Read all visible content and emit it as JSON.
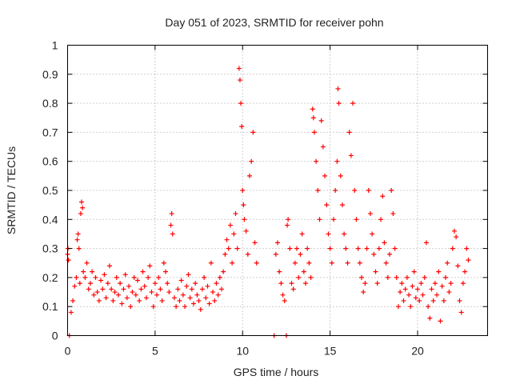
{
  "chart_data": {
    "type": "scatter",
    "title": "Day 051 of 2023, SRMTID for receiver pohn",
    "xlabel": "GPS time / hours",
    "ylabel": "SRMTID / TECUs",
    "xlim": [
      0,
      24
    ],
    "ylim": [
      0,
      1
    ],
    "xticks": [
      0,
      5,
      10,
      15,
      20
    ],
    "xtick_labels": [
      "0",
      "5",
      "10",
      "15",
      "20"
    ],
    "yticks": [
      0,
      0.1,
      0.2,
      0.3,
      0.4,
      0.5,
      0.6,
      0.7,
      0.8,
      0.9,
      1
    ],
    "ytick_labels": [
      "0",
      "0.1",
      "0.2",
      "0.3",
      "0.4",
      "0.5",
      "0.6",
      "0.7",
      "0.8",
      "0.9",
      "1"
    ],
    "grid": true,
    "marker": "plus",
    "color": "#ff0000",
    "series": [
      {
        "name": "SRMTID",
        "points": [
          [
            0.0,
            0.28
          ],
          [
            0.02,
            0.3
          ],
          [
            0.05,
            0.26
          ],
          [
            0.1,
            0.0
          ],
          [
            0.2,
            0.08
          ],
          [
            0.3,
            0.12
          ],
          [
            0.4,
            0.17
          ],
          [
            0.5,
            0.2
          ],
          [
            0.55,
            0.33
          ],
          [
            0.6,
            0.35
          ],
          [
            0.65,
            0.3
          ],
          [
            0.7,
            0.18
          ],
          [
            0.75,
            0.42
          ],
          [
            0.8,
            0.46
          ],
          [
            0.85,
            0.44
          ],
          [
            0.9,
            0.22
          ],
          [
            1.0,
            0.2
          ],
          [
            1.1,
            0.25
          ],
          [
            1.2,
            0.16
          ],
          [
            1.3,
            0.18
          ],
          [
            1.4,
            0.22
          ],
          [
            1.5,
            0.14
          ],
          [
            1.6,
            0.2
          ],
          [
            1.7,
            0.15
          ],
          [
            1.8,
            0.12
          ],
          [
            1.9,
            0.19
          ],
          [
            2.0,
            0.16
          ],
          [
            2.1,
            0.21
          ],
          [
            2.2,
            0.13
          ],
          [
            2.3,
            0.18
          ],
          [
            2.4,
            0.24
          ],
          [
            2.5,
            0.16
          ],
          [
            2.6,
            0.12
          ],
          [
            2.7,
            0.15
          ],
          [
            2.8,
            0.2
          ],
          [
            2.9,
            0.14
          ],
          [
            3.0,
            0.18
          ],
          [
            3.1,
            0.11
          ],
          [
            3.2,
            0.16
          ],
          [
            3.3,
            0.21
          ],
          [
            3.4,
            0.13
          ],
          [
            3.5,
            0.17
          ],
          [
            3.6,
            0.1
          ],
          [
            3.7,
            0.15
          ],
          [
            3.8,
            0.2
          ],
          [
            3.9,
            0.14
          ],
          [
            4.0,
            0.19
          ],
          [
            4.1,
            0.12
          ],
          [
            4.2,
            0.16
          ],
          [
            4.3,
            0.22
          ],
          [
            4.4,
            0.17
          ],
          [
            4.5,
            0.13
          ],
          [
            4.6,
            0.2
          ],
          [
            4.7,
            0.24
          ],
          [
            4.8,
            0.15
          ],
          [
            4.9,
            0.1
          ],
          [
            5.0,
            0.18
          ],
          [
            5.1,
            0.14
          ],
          [
            5.2,
            0.2
          ],
          [
            5.3,
            0.16
          ],
          [
            5.4,
            0.12
          ],
          [
            5.5,
            0.25
          ],
          [
            5.6,
            0.22
          ],
          [
            5.7,
            0.18
          ],
          [
            5.8,
            0.15
          ],
          [
            5.9,
            0.38
          ],
          [
            5.95,
            0.42
          ],
          [
            6.0,
            0.35
          ],
          [
            6.1,
            0.13
          ],
          [
            6.2,
            0.1
          ],
          [
            6.3,
            0.16
          ],
          [
            6.4,
            0.12
          ],
          [
            6.5,
            0.19
          ],
          [
            6.6,
            0.14
          ],
          [
            6.7,
            0.1
          ],
          [
            6.8,
            0.17
          ],
          [
            6.9,
            0.21
          ],
          [
            7.0,
            0.13
          ],
          [
            7.1,
            0.16
          ],
          [
            7.2,
            0.11
          ],
          [
            7.3,
            0.18
          ],
          [
            7.4,
            0.14
          ],
          [
            7.5,
            0.12
          ],
          [
            7.6,
            0.09
          ],
          [
            7.7,
            0.16
          ],
          [
            7.8,
            0.2
          ],
          [
            7.9,
            0.13
          ],
          [
            8.0,
            0.17
          ],
          [
            8.1,
            0.11
          ],
          [
            8.2,
            0.25
          ],
          [
            8.3,
            0.15
          ],
          [
            8.4,
            0.12
          ],
          [
            8.5,
            0.18
          ],
          [
            8.6,
            0.14
          ],
          [
            8.7,
            0.2
          ],
          [
            8.8,
            0.16
          ],
          [
            8.9,
            0.22
          ],
          [
            9.0,
            0.28
          ],
          [
            9.1,
            0.33
          ],
          [
            9.2,
            0.3
          ],
          [
            9.3,
            0.38
          ],
          [
            9.4,
            0.25
          ],
          [
            9.5,
            0.35
          ],
          [
            9.6,
            0.42
          ],
          [
            9.7,
            0.3
          ],
          [
            9.8,
            0.92
          ],
          [
            9.85,
            0.88
          ],
          [
            9.9,
            0.8
          ],
          [
            9.95,
            0.72
          ],
          [
            10.0,
            0.5
          ],
          [
            10.05,
            0.45
          ],
          [
            10.1,
            0.4
          ],
          [
            10.2,
            0.36
          ],
          [
            10.3,
            0.28
          ],
          [
            10.4,
            0.55
          ],
          [
            10.5,
            0.6
          ],
          [
            10.6,
            0.7
          ],
          [
            10.7,
            0.32
          ],
          [
            10.8,
            0.25
          ],
          [
            11.8,
            0.0
          ],
          [
            11.9,
            0.28
          ],
          [
            12.0,
            0.32
          ],
          [
            12.1,
            0.22
          ],
          [
            12.2,
            0.18
          ],
          [
            12.3,
            0.14
          ],
          [
            12.4,
            0.12
          ],
          [
            12.5,
            0.0
          ],
          [
            12.55,
            0.38
          ],
          [
            12.6,
            0.4
          ],
          [
            12.7,
            0.3
          ],
          [
            12.8,
            0.18
          ],
          [
            12.9,
            0.16
          ],
          [
            13.0,
            0.25
          ],
          [
            13.1,
            0.3
          ],
          [
            13.2,
            0.2
          ],
          [
            13.3,
            0.28
          ],
          [
            13.4,
            0.35
          ],
          [
            13.5,
            0.22
          ],
          [
            13.6,
            0.18
          ],
          [
            13.7,
            0.3
          ],
          [
            13.8,
            0.25
          ],
          [
            13.9,
            0.2
          ],
          [
            14.0,
            0.78
          ],
          [
            14.05,
            0.75
          ],
          [
            14.1,
            0.7
          ],
          [
            14.2,
            0.6
          ],
          [
            14.3,
            0.5
          ],
          [
            14.4,
            0.4
          ],
          [
            14.5,
            0.74
          ],
          [
            14.6,
            0.65
          ],
          [
            14.7,
            0.55
          ],
          [
            14.8,
            0.45
          ],
          [
            14.9,
            0.35
          ],
          [
            15.0,
            0.3
          ],
          [
            15.1,
            0.25
          ],
          [
            15.2,
            0.4
          ],
          [
            15.3,
            0.5
          ],
          [
            15.4,
            0.6
          ],
          [
            15.45,
            0.85
          ],
          [
            15.5,
            0.8
          ],
          [
            15.6,
            0.55
          ],
          [
            15.7,
            0.45
          ],
          [
            15.8,
            0.35
          ],
          [
            15.9,
            0.3
          ],
          [
            16.0,
            0.25
          ],
          [
            16.1,
            0.7
          ],
          [
            16.2,
            0.62
          ],
          [
            16.3,
            0.8
          ],
          [
            16.4,
            0.5
          ],
          [
            16.5,
            0.4
          ],
          [
            16.6,
            0.3
          ],
          [
            16.7,
            0.25
          ],
          [
            16.8,
            0.2
          ],
          [
            16.9,
            0.15
          ],
          [
            17.0,
            0.18
          ],
          [
            17.1,
            0.3
          ],
          [
            17.2,
            0.5
          ],
          [
            17.3,
            0.42
          ],
          [
            17.4,
            0.35
          ],
          [
            17.5,
            0.28
          ],
          [
            17.6,
            0.22
          ],
          [
            17.7,
            0.18
          ],
          [
            17.8,
            0.3
          ],
          [
            17.9,
            0.4
          ],
          [
            18.0,
            0.48
          ],
          [
            18.1,
            0.32
          ],
          [
            18.2,
            0.25
          ],
          [
            18.3,
            0.2
          ],
          [
            18.4,
            0.28
          ],
          [
            18.5,
            0.5
          ],
          [
            18.6,
            0.42
          ],
          [
            18.7,
            0.3
          ],
          [
            18.8,
            0.2
          ],
          [
            18.9,
            0.1
          ],
          [
            19.0,
            0.15
          ],
          [
            19.1,
            0.18
          ],
          [
            19.2,
            0.12
          ],
          [
            19.3,
            0.16
          ],
          [
            19.4,
            0.2
          ],
          [
            19.5,
            0.14
          ],
          [
            19.6,
            0.1
          ],
          [
            19.7,
            0.17
          ],
          [
            19.8,
            0.22
          ],
          [
            19.9,
            0.13
          ],
          [
            20.0,
            0.16
          ],
          [
            20.1,
            0.12
          ],
          [
            20.2,
            0.18
          ],
          [
            20.3,
            0.14
          ],
          [
            20.4,
            0.2
          ],
          [
            20.5,
            0.32
          ],
          [
            20.6,
            0.1
          ],
          [
            20.7,
            0.06
          ],
          [
            20.8,
            0.16
          ],
          [
            20.9,
            0.12
          ],
          [
            21.0,
            0.18
          ],
          [
            21.1,
            0.14
          ],
          [
            21.2,
            0.22
          ],
          [
            21.3,
            0.05
          ],
          [
            21.4,
            0.17
          ],
          [
            21.5,
            0.12
          ],
          [
            21.6,
            0.2
          ],
          [
            21.7,
            0.25
          ],
          [
            21.8,
            0.15
          ],
          [
            21.9,
            0.18
          ],
          [
            22.0,
            0.3
          ],
          [
            22.1,
            0.36
          ],
          [
            22.2,
            0.34
          ],
          [
            22.3,
            0.24
          ],
          [
            22.4,
            0.12
          ],
          [
            22.5,
            0.08
          ],
          [
            22.6,
            0.18
          ],
          [
            22.7,
            0.22
          ],
          [
            22.8,
            0.3
          ],
          [
            22.9,
            0.26
          ]
        ]
      }
    ]
  }
}
